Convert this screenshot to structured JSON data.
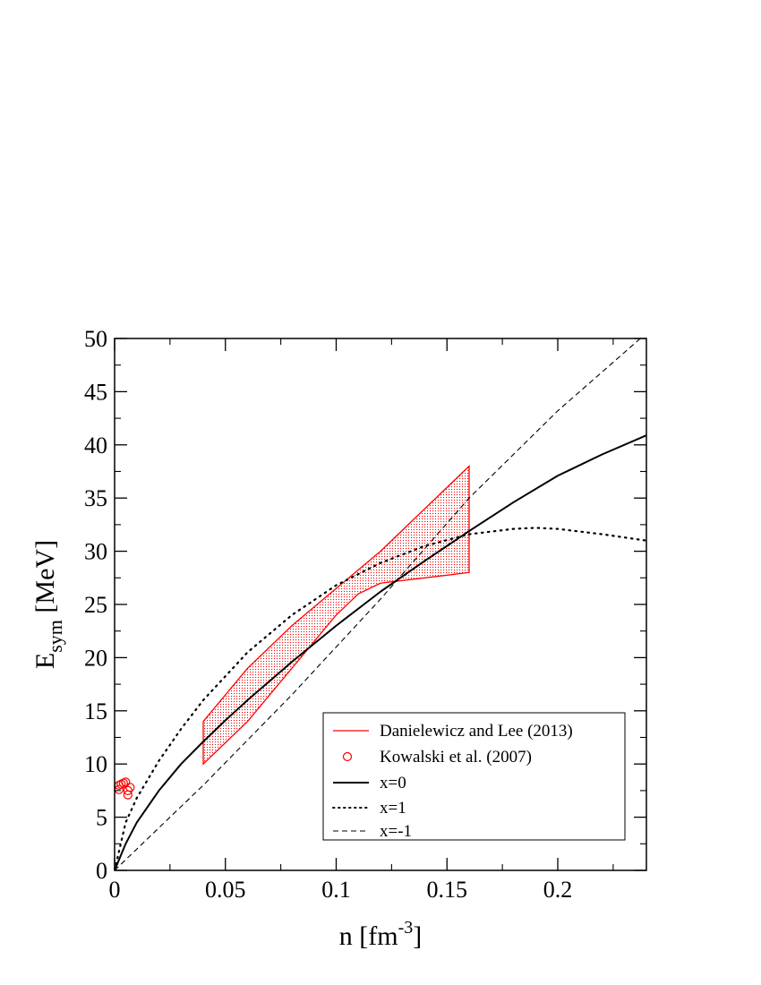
{
  "chart_data": {
    "type": "line",
    "xlabel": "n [fm",
    "xlabel_sup": "-3",
    "xlabel_close": "]",
    "ylabel_main": "E",
    "ylabel_sub": "sym",
    "ylabel_rest": " [MeV]",
    "xlim": [
      0,
      0.24
    ],
    "ylim": [
      0,
      50
    ],
    "x_ticks": [
      0,
      0.05,
      0.1,
      0.15,
      0.2
    ],
    "x_tick_labels": [
      "0",
      "0.05",
      "0.1",
      "0.15",
      "0.2"
    ],
    "y_ticks": [
      0,
      5,
      10,
      15,
      20,
      25,
      30,
      35,
      40,
      45,
      50
    ],
    "y_tick_labels": [
      "0",
      "5",
      "10",
      "15",
      "20",
      "25",
      "30",
      "35",
      "40",
      "45",
      "50"
    ],
    "grid": false,
    "legend_position": "bottom-right",
    "band": {
      "name": "Danielewicz and Lee (2013)",
      "color": "#ff0000",
      "upper": [
        [
          0.04,
          14
        ],
        [
          0.06,
          19
        ],
        [
          0.08,
          23
        ],
        [
          0.1,
          26.5
        ],
        [
          0.12,
          30
        ],
        [
          0.16,
          38
        ]
      ],
      "lower": [
        [
          0.04,
          10
        ],
        [
          0.06,
          14
        ],
        [
          0.08,
          19
        ],
        [
          0.1,
          24
        ],
        [
          0.11,
          26
        ],
        [
          0.12,
          27
        ],
        [
          0.16,
          28
        ]
      ]
    },
    "points": {
      "name": "Kowalski et al. (2007)",
      "color": "#ff0000",
      "data": [
        [
          0.002,
          7.6
        ],
        [
          0.002,
          8.0
        ],
        [
          0.003,
          8.1
        ],
        [
          0.004,
          8.2
        ],
        [
          0.005,
          8.3
        ],
        [
          0.006,
          7.5
        ],
        [
          0.007,
          7.8
        ],
        [
          0.006,
          7.1
        ]
      ]
    },
    "series": [
      {
        "name": "x=0",
        "style": "solid",
        "color": "#000000",
        "points": [
          [
            0,
            0
          ],
          [
            0.005,
            2.5
          ],
          [
            0.01,
            4.5
          ],
          [
            0.02,
            7.5
          ],
          [
            0.03,
            10
          ],
          [
            0.04,
            12.1
          ],
          [
            0.05,
            14.1
          ],
          [
            0.06,
            16
          ],
          [
            0.08,
            19.6
          ],
          [
            0.1,
            23
          ],
          [
            0.12,
            26.2
          ],
          [
            0.14,
            29.1
          ],
          [
            0.16,
            31.9
          ],
          [
            0.18,
            34.6
          ],
          [
            0.2,
            37.1
          ],
          [
            0.22,
            39.1
          ],
          [
            0.24,
            40.9
          ]
        ]
      },
      {
        "name": "x=1",
        "style": "dotted",
        "color": "#000000",
        "points": [
          [
            0,
            0
          ],
          [
            0.005,
            4.5
          ],
          [
            0.01,
            6.8
          ],
          [
            0.02,
            10.3
          ],
          [
            0.03,
            13.3
          ],
          [
            0.04,
            16
          ],
          [
            0.06,
            20.5
          ],
          [
            0.08,
            24
          ],
          [
            0.1,
            26.8
          ],
          [
            0.12,
            28.9
          ],
          [
            0.14,
            30.5
          ],
          [
            0.16,
            31.6
          ],
          [
            0.18,
            32.1
          ],
          [
            0.19,
            32.2
          ],
          [
            0.2,
            32.1
          ],
          [
            0.22,
            31.6
          ],
          [
            0.24,
            31.0
          ]
        ]
      },
      {
        "name": "x=-1",
        "style": "dashed",
        "color": "#000000",
        "points": [
          [
            0,
            0
          ],
          [
            0.04,
            8
          ],
          [
            0.08,
            16.5
          ],
          [
            0.12,
            25.5
          ],
          [
            0.16,
            35
          ],
          [
            0.2,
            43.2
          ],
          [
            0.24,
            50.5
          ]
        ]
      }
    ]
  }
}
